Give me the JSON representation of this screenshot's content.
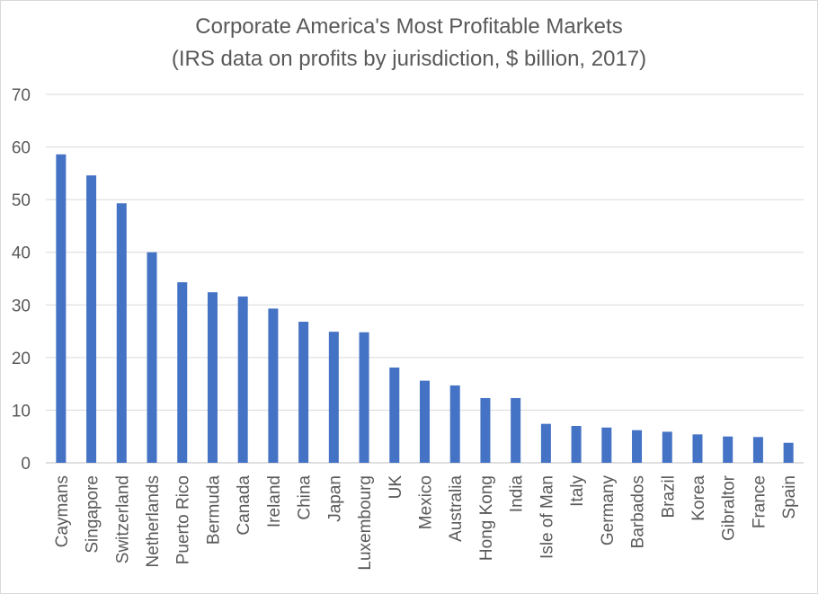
{
  "chart_data": {
    "type": "bar",
    "title": "Corporate America's Most Profitable Markets",
    "subtitle": "(IRS data on profits by jurisdiction, $ billion, 2017)",
    "xlabel": "",
    "ylabel": "",
    "ylim": [
      0,
      70
    ],
    "yticks": [
      0,
      10,
      20,
      30,
      40,
      50,
      60,
      70
    ],
    "grid": true,
    "legend": "none",
    "categories": [
      "Caymans",
      "Singapore",
      "Switzerland",
      "Netherlands",
      "Puerto Rico",
      "Bermuda",
      "Canada",
      "Ireland",
      "China",
      "Japan",
      "Luxembourg",
      "UK",
      "Mexico",
      "Australia",
      "Hong Kong",
      "India",
      "Isle of Man",
      "Italy",
      "Germany",
      "Barbados",
      "Brazil",
      "Korea",
      "Gibraltor",
      "France",
      "Spain"
    ],
    "series": [
      {
        "name": "Profits ($ billion)",
        "color": "#4472c4",
        "values": [
          58.6,
          54.6,
          49.3,
          40.0,
          34.3,
          32.4,
          31.6,
          29.3,
          26.8,
          24.9,
          24.8,
          18.1,
          15.6,
          14.7,
          12.3,
          12.3,
          7.4,
          7.0,
          6.7,
          6.2,
          5.9,
          5.4,
          5.0,
          4.9,
          3.8
        ]
      }
    ]
  }
}
